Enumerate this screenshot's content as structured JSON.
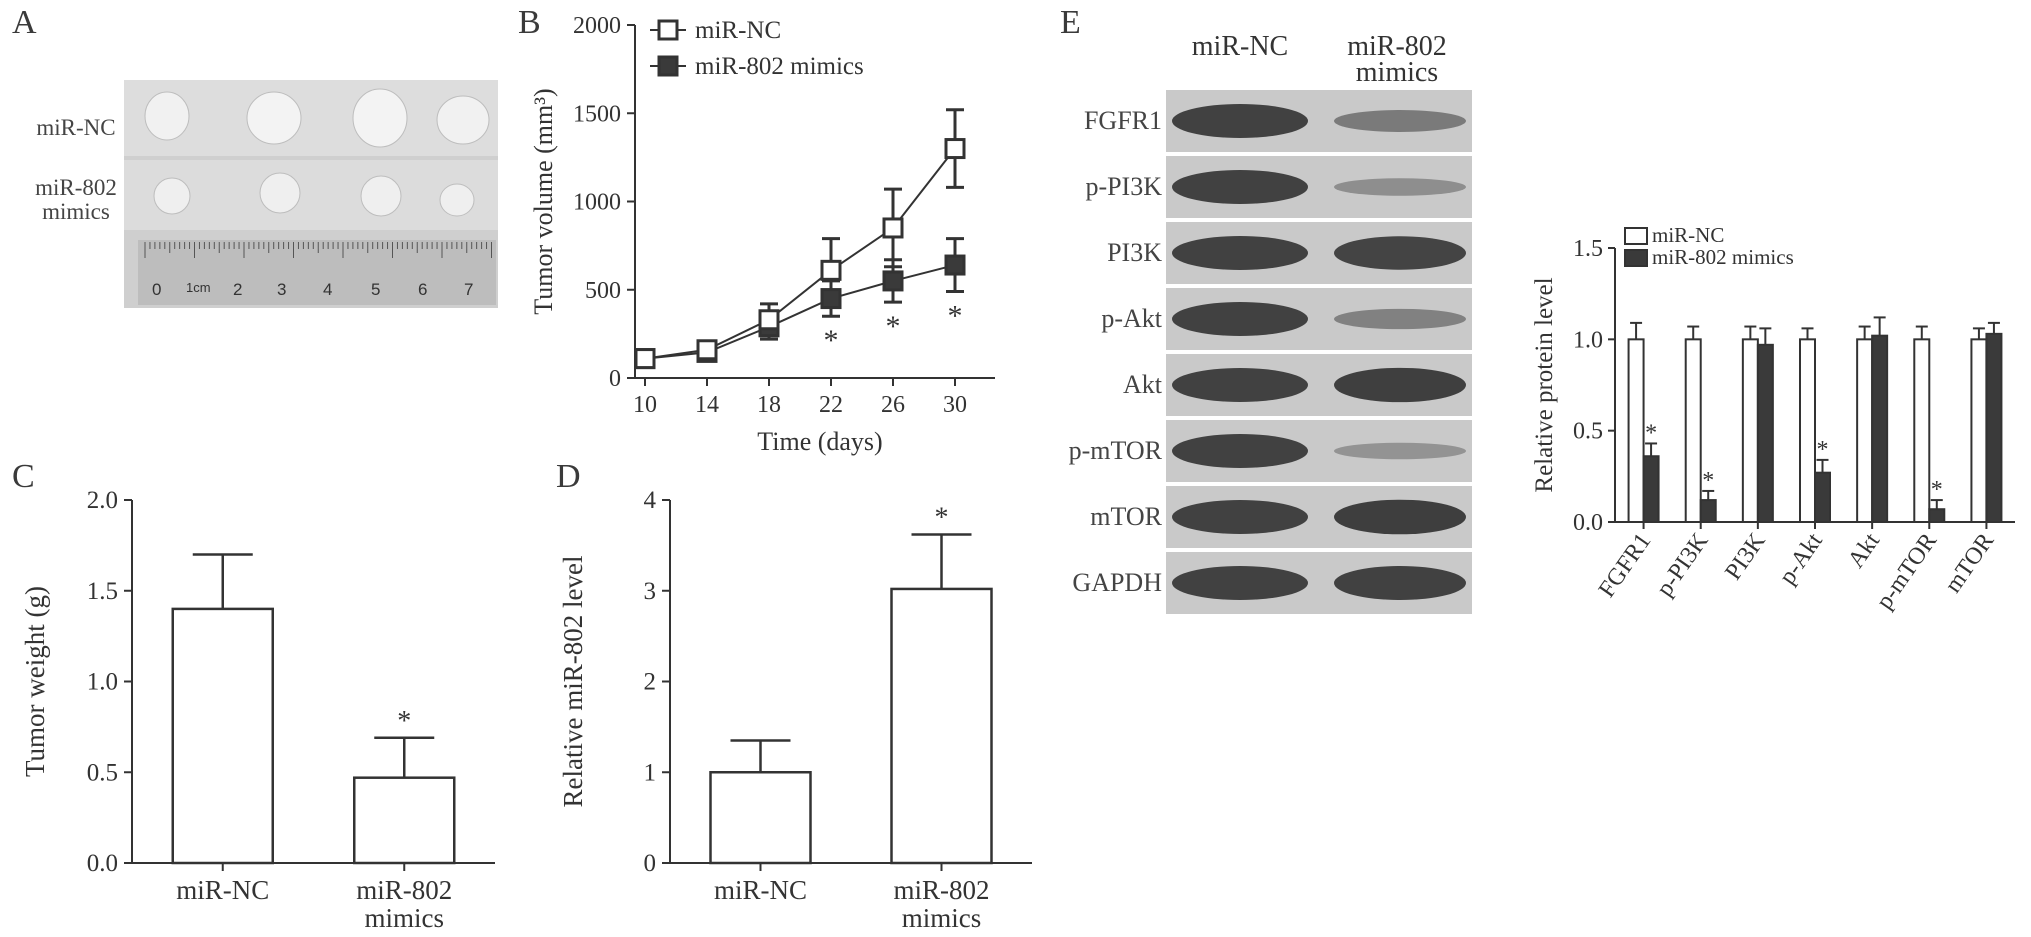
{
  "panels": {
    "A": "A",
    "B": "B",
    "C": "C",
    "D": "D",
    "E": "E"
  },
  "panelA": {
    "rows": [
      "miR-NC",
      "miR-802\nmimics"
    ],
    "ruler_ticks": [
      "0",
      "1cm",
      "2",
      "3",
      "4",
      "5",
      "6",
      "7"
    ]
  },
  "panelE_blot": {
    "columns": [
      "miR-NC",
      "miR-802\nmimics"
    ],
    "bands": [
      "FGFR1",
      "p-PI3K",
      "PI3K",
      "p-Akt",
      "Akt",
      "p-mTOR",
      "mTOR",
      "GAPDH"
    ]
  },
  "chart_data": [
    {
      "id": "B",
      "type": "line",
      "xlabel": "Time (days)",
      "ylabel": "Tumor volume (mm³)",
      "x": [
        10,
        14,
        18,
        22,
        26,
        30
      ],
      "xticks": [
        "10",
        "14",
        "18",
        "22",
        "26",
        "30"
      ],
      "ylim": [
        0,
        2000
      ],
      "yticks": [
        "0",
        "500",
        "1000",
        "1500",
        "2000"
      ],
      "series": [
        {
          "name": "miR-NC",
          "marker": "open-square",
          "values": [
            110,
            160,
            330,
            610,
            850,
            1300
          ],
          "errors": [
            30,
            40,
            90,
            180,
            220,
            220
          ]
        },
        {
          "name": "miR-802 mimics",
          "marker": "filled-square",
          "values": [
            110,
            145,
            290,
            450,
            550,
            640
          ],
          "errors": [
            30,
            40,
            70,
            100,
            120,
            150
          ]
        }
      ],
      "significance": [
        {
          "x": 22,
          "label": "*"
        },
        {
          "x": 26,
          "label": "*"
        },
        {
          "x": 30,
          "label": "*"
        }
      ],
      "legend": "top-left"
    },
    {
      "id": "C",
      "type": "bar",
      "ylabel": "Tumor weight (g)",
      "categories": [
        "miR-NC",
        "miR-802\nmimics"
      ],
      "values": [
        1.4,
        0.47
      ],
      "errors": [
        0.3,
        0.22
      ],
      "ylim": [
        0,
        2.0
      ],
      "yticks": [
        "0.0",
        "0.5",
        "1.0",
        "1.5",
        "2.0"
      ],
      "significance": [
        {
          "index": 1,
          "label": "*"
        }
      ]
    },
    {
      "id": "D",
      "type": "bar",
      "ylabel": "Relative miR-802 level",
      "categories": [
        "miR-NC",
        "miR-802\nmimics"
      ],
      "values": [
        1.0,
        3.02
      ],
      "errors": [
        0.35,
        0.6
      ],
      "ylim": [
        0,
        4
      ],
      "yticks": [
        "0",
        "1",
        "2",
        "3",
        "4"
      ],
      "significance": [
        {
          "index": 1,
          "label": "*"
        }
      ]
    },
    {
      "id": "E",
      "type": "bar",
      "ylabel": "Relative protein level",
      "categories": [
        "FGFR1",
        "p-PI3K",
        "PI3K",
        "p-Akt",
        "Akt",
        "p-mTOR",
        "mTOR"
      ],
      "ylim": [
        0,
        1.5
      ],
      "yticks": [
        "0.0",
        "0.5",
        "1.0",
        "1.5"
      ],
      "series": [
        {
          "name": "miR-NC",
          "fill": "#ffffff",
          "values": [
            1.0,
            1.0,
            1.0,
            1.0,
            1.0,
            1.0,
            1.0
          ],
          "errors": [
            0.09,
            0.07,
            0.07,
            0.06,
            0.07,
            0.07,
            0.06
          ]
        },
        {
          "name": "miR-802 mimics",
          "fill": "#3a3a3a",
          "values": [
            0.36,
            0.12,
            0.97,
            0.27,
            1.02,
            0.07,
            1.03
          ],
          "errors": [
            0.07,
            0.05,
            0.09,
            0.07,
            0.1,
            0.05,
            0.06
          ]
        }
      ],
      "significance": [
        {
          "index": 0,
          "label": "*"
        },
        {
          "index": 1,
          "label": "*"
        },
        {
          "index": 3,
          "label": "*"
        },
        {
          "index": 5,
          "label": "*"
        }
      ],
      "legend": "top-left"
    }
  ],
  "colors": {
    "axis": "#333333",
    "dark_fill": "#3a3a3a",
    "photo_bg": "#d8d8d8",
    "blot_bg": "#c9c9c9",
    "band": "#2e2e2e"
  }
}
